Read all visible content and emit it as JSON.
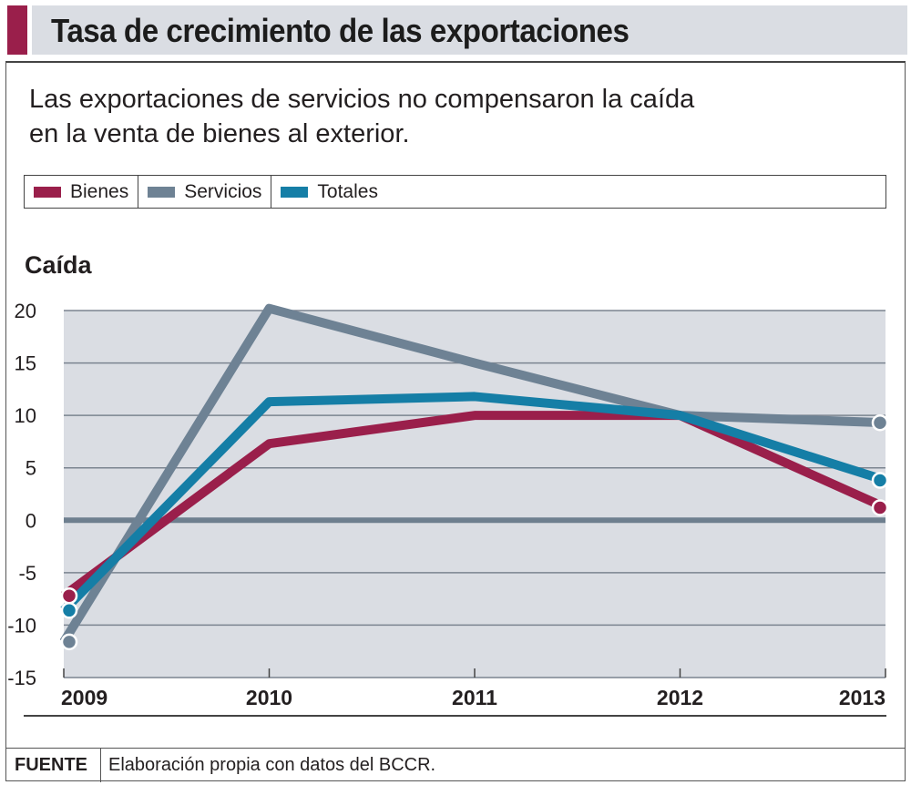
{
  "title": "Tasa de crecimiento de las exportaciones",
  "subtitle_line1": "Las exportaciones de servicios no compensaron la caída",
  "subtitle_line2": "en la venta de bienes al exterior.",
  "footer": {
    "label": "FUENTE",
    "text": "Elaboración propia con datos del BCCR."
  },
  "colors": {
    "accent": "#9a1f4b",
    "bienes": "#9a1f4b",
    "servicios": "#6e8294",
    "totales": "#157ea6",
    "plot_bg": "#dadde3"
  },
  "chart_data": {
    "type": "line",
    "title": "Tasa de crecimiento de las exportaciones",
    "ylabel": "Caída",
    "xlabel": "",
    "x": [
      "2009",
      "2010",
      "2011",
      "2012",
      "2013"
    ],
    "ylim": [
      -15,
      20
    ],
    "yticks": [
      20,
      15,
      10,
      5,
      0,
      -5,
      -10,
      -15
    ],
    "grid": true,
    "legend_position": "top",
    "series": [
      {
        "name": "Bienes",
        "color": "#9a1f4b",
        "values": [
          -7.2,
          7.3,
          10.0,
          10.0,
          1.2
        ]
      },
      {
        "name": "Servicios",
        "color": "#6e8294",
        "values": [
          -11.6,
          20.2,
          15.0,
          10.0,
          9.3
        ]
      },
      {
        "name": "Totales",
        "color": "#157ea6",
        "values": [
          -8.6,
          11.3,
          11.8,
          10.0,
          3.8
        ]
      }
    ]
  }
}
